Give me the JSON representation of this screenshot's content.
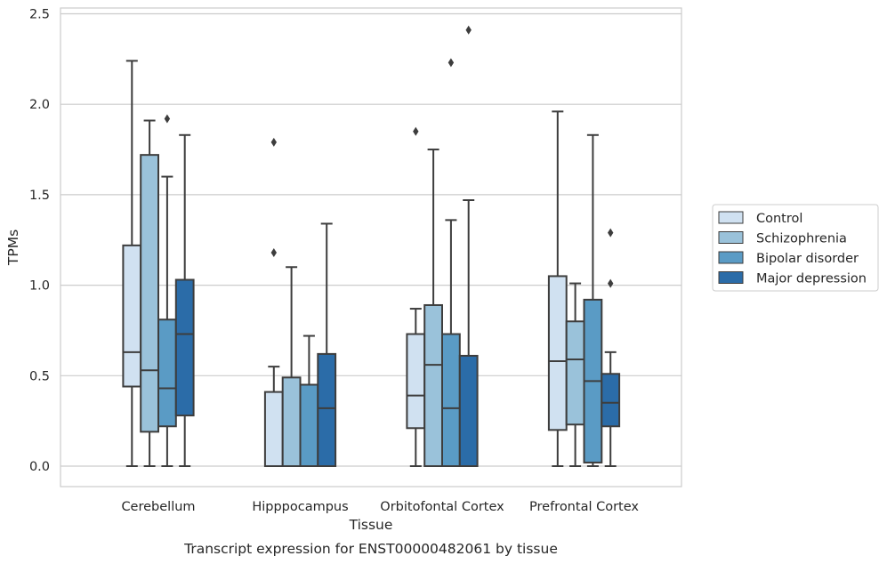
{
  "chart_data": {
    "type": "boxplot",
    "caption": "Transcript expression for ENST00000482061 by tissue",
    "xlabel": "Tissue",
    "ylabel": "TPMs",
    "ylim": [
      -0.12,
      2.54
    ],
    "yticks": [
      "0.0",
      "0.5",
      "1.0",
      "1.5",
      "2.0",
      "2.5"
    ],
    "categories": [
      "Cerebellum",
      "Hipppocampus",
      "Orbitofontal Cortex",
      "Prefrontal Cortex"
    ],
    "grid": "horizontal",
    "legend_position": "right",
    "series": [
      {
        "name": "Control",
        "color": "#d0e1f1",
        "boxes": [
          {
            "whislo": 0.0,
            "q1": 0.44,
            "median": 0.63,
            "q3": 1.22,
            "whishi": 2.24,
            "fliers": []
          },
          {
            "whislo": 0.0,
            "q1": 0.0,
            "median": 0.0,
            "q3": 0.41,
            "whishi": 0.55,
            "fliers": [
              1.18,
              1.79
            ]
          },
          {
            "whislo": 0.0,
            "q1": 0.21,
            "median": 0.39,
            "q3": 0.73,
            "whishi": 0.87,
            "fliers": [
              1.85
            ]
          },
          {
            "whislo": 0.0,
            "q1": 0.2,
            "median": 0.58,
            "q3": 1.05,
            "whishi": 1.96,
            "fliers": []
          }
        ]
      },
      {
        "name": "Schizophrenia",
        "color": "#9ac2da",
        "boxes": [
          {
            "whislo": 0.0,
            "q1": 0.19,
            "median": 0.53,
            "q3": 1.72,
            "whishi": 1.91,
            "fliers": []
          },
          {
            "whislo": 0.0,
            "q1": 0.0,
            "median": 0.0,
            "q3": 0.49,
            "whishi": 1.1,
            "fliers": []
          },
          {
            "whislo": 0.0,
            "q1": 0.0,
            "median": 0.56,
            "q3": 0.89,
            "whishi": 1.75,
            "fliers": []
          },
          {
            "whislo": 0.0,
            "q1": 0.23,
            "median": 0.59,
            "q3": 0.8,
            "whishi": 1.01,
            "fliers": []
          }
        ]
      },
      {
        "name": "Bipolar disorder",
        "color": "#5a9bc5",
        "boxes": [
          {
            "whislo": 0.0,
            "q1": 0.22,
            "median": 0.43,
            "q3": 0.81,
            "whishi": 1.6,
            "fliers": [
              1.92
            ]
          },
          {
            "whislo": 0.0,
            "q1": 0.0,
            "median": 0.0,
            "q3": 0.45,
            "whishi": 0.72,
            "fliers": []
          },
          {
            "whislo": 0.0,
            "q1": 0.0,
            "median": 0.32,
            "q3": 0.73,
            "whishi": 1.36,
            "fliers": [
              2.23
            ]
          },
          {
            "whislo": 0.0,
            "q1": 0.02,
            "median": 0.47,
            "q3": 0.92,
            "whishi": 1.83,
            "fliers": []
          }
        ]
      },
      {
        "name": "Major depression",
        "color": "#2b6ca8",
        "boxes": [
          {
            "whislo": 0.0,
            "q1": 0.28,
            "median": 0.73,
            "q3": 1.03,
            "whishi": 1.83,
            "fliers": []
          },
          {
            "whislo": 0.0,
            "q1": 0.0,
            "median": 0.32,
            "q3": 0.62,
            "whishi": 1.34,
            "fliers": []
          },
          {
            "whislo": 0.0,
            "q1": 0.0,
            "median": 0.0,
            "q3": 0.61,
            "whishi": 1.47,
            "fliers": [
              2.41
            ]
          },
          {
            "whislo": 0.0,
            "q1": 0.22,
            "median": 0.35,
            "q3": 0.51,
            "whishi": 0.63,
            "fliers": [
              1.01,
              1.29
            ]
          }
        ]
      }
    ]
  }
}
